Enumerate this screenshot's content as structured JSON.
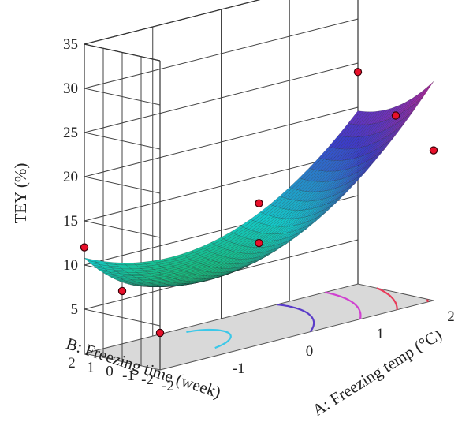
{
  "chart_data": {
    "type": "surface3d",
    "title": "",
    "zlabel": "TEY (%)",
    "xlabel": "A: Freezing temp (°C)",
    "ylabel": "B: Freezing time (week)",
    "zticks": [
      "5",
      "10",
      "15",
      "20",
      "25",
      "30",
      "35"
    ],
    "zlim": [
      0,
      35
    ],
    "xticks": [
      "-2",
      "-1",
      "0",
      "1",
      "2"
    ],
    "xlim": [
      -2,
      2
    ],
    "yticks": [
      "-2",
      "-1",
      "0",
      "1",
      "2"
    ],
    "ylim": [
      -2,
      2
    ],
    "grid": true,
    "surface_model": "TEY = 9.0 + 3.0*A - 0.5*B + 1.5*A^2 + 0.3*B^2 - 0.4*A*B",
    "design_points": [
      {
        "A": -2,
        "B": -2,
        "TEY": 4.2
      },
      {
        "A": -2,
        "B": 2,
        "TEY": 12.0
      },
      {
        "A": -2,
        "B": 0,
        "TEY": 8.0
      },
      {
        "A": 0,
        "B": 0,
        "TEY": 14.0
      },
      {
        "A": 0,
        "B": 0,
        "TEY": 9.5
      },
      {
        "A": 2,
        "B": -2,
        "TEY": 17.0
      },
      {
        "A": 2,
        "B": 2,
        "TEY": 24.0
      },
      {
        "A": 2,
        "B": 0,
        "TEY": 20.0
      }
    ],
    "contour_levels": [
      8,
      12,
      16,
      20,
      24
    ],
    "contour_colors": [
      "#3cc8e8",
      "#5a3cc8",
      "#d040d0",
      "#e83c5a",
      "#e0304a"
    ]
  }
}
